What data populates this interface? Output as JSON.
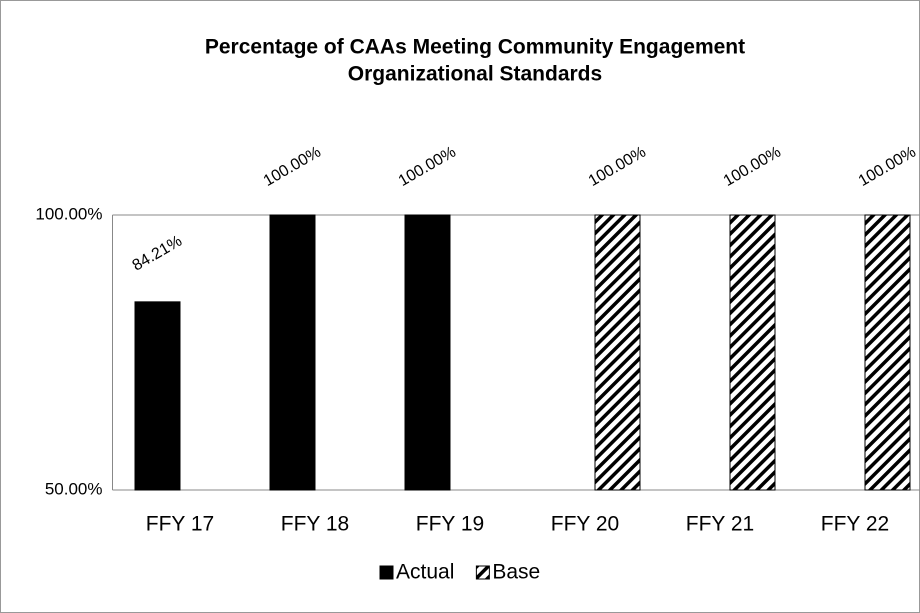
{
  "chart_data": {
    "type": "bar",
    "title": [
      "Percentage of CAAs Meeting Community Engagement",
      "Organizational Standards"
    ],
    "categories": [
      "FFY 17",
      "FFY 18",
      "FFY 19",
      "FFY 20",
      "FFY 21",
      "FFY 22"
    ],
    "series": [
      {
        "name": "Actual",
        "color": "#000000",
        "pattern": "solid",
        "values": [
          84.21,
          100,
          100,
          null,
          null,
          null
        ],
        "value_labels": [
          "84.21%",
          "100.00%",
          "100.00%",
          null,
          null,
          null
        ]
      },
      {
        "name": "Base",
        "color": "#000000",
        "pattern": "hatch",
        "values": [
          null,
          null,
          null,
          100,
          100,
          100
        ],
        "value_labels": [
          null,
          null,
          null,
          "100.00%",
          "100.00%",
          "100.00%"
        ]
      }
    ],
    "ylim": [
      50,
      100
    ],
    "yticks": [
      {
        "value": 50,
        "label": "50.00%"
      },
      {
        "value": 100,
        "label": "100.00%"
      }
    ],
    "grid": true,
    "legend": "bottom"
  }
}
